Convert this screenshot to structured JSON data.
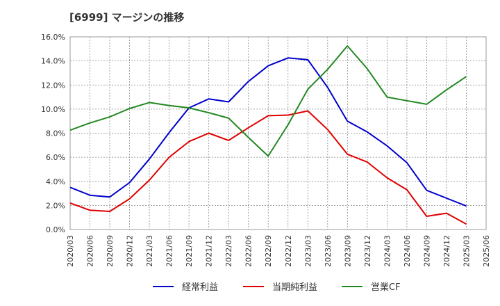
{
  "chart_data": {
    "type": "line",
    "title": "[6999]  マージンの推移",
    "x": [
      "2020/03",
      "2020/06",
      "2020/09",
      "2020/12",
      "2021/03",
      "2021/06",
      "2021/09",
      "2021/12",
      "2022/03",
      "2022/06",
      "2022/09",
      "2022/12",
      "2023/03",
      "2023/06",
      "2023/09",
      "2023/12",
      "2024/03",
      "2024/06",
      "2024/09",
      "2024/12",
      "2025/03",
      "2025/06"
    ],
    "ylim": [
      0,
      16
    ],
    "yticks": [
      "0.0%",
      "2.0%",
      "4.0%",
      "6.0%",
      "8.0%",
      "10.0%",
      "12.0%",
      "14.0%",
      "16.0%"
    ],
    "grid": true,
    "legend_position": "bottom",
    "series": [
      {
        "name": "経常利益",
        "color": "#0000cc",
        "values": [
          3.5,
          2.85,
          2.7,
          3.9,
          5.85,
          8.05,
          10.1,
          10.85,
          10.6,
          12.3,
          13.6,
          14.25,
          14.1,
          11.8,
          9.0,
          8.1,
          6.95,
          5.55,
          3.25,
          2.6,
          1.95,
          null
        ]
      },
      {
        "name": "当期純利益",
        "color": "#e00000",
        "values": [
          2.2,
          1.6,
          1.5,
          2.55,
          4.1,
          6.0,
          7.3,
          8.0,
          7.4,
          8.45,
          9.45,
          9.5,
          9.85,
          8.3,
          6.25,
          5.6,
          4.3,
          3.3,
          1.1,
          1.35,
          0.45,
          null
        ]
      },
      {
        "name": "営業CF",
        "color": "#228822",
        "values": [
          8.25,
          8.85,
          9.35,
          10.05,
          10.55,
          10.3,
          10.1,
          9.7,
          9.25,
          7.65,
          6.1,
          8.7,
          11.65,
          13.3,
          15.25,
          13.35,
          11.0,
          10.7,
          10.4,
          11.6,
          12.7,
          null
        ]
      }
    ]
  }
}
